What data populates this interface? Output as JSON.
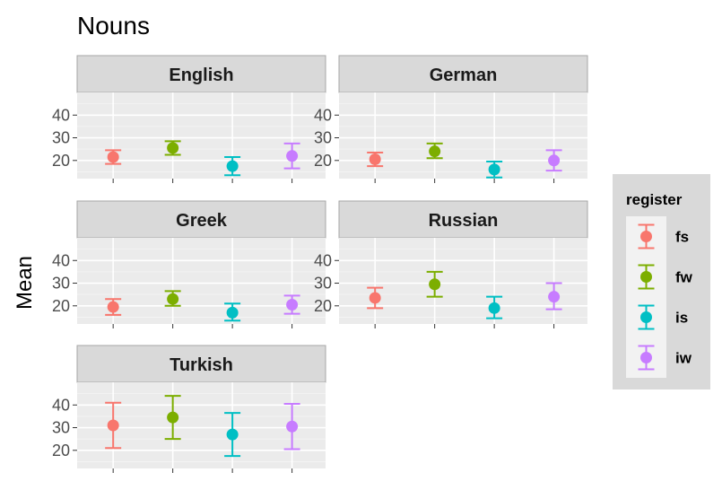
{
  "chart_data": {
    "type": "scatter",
    "title": "Nouns",
    "ylabel": "Mean",
    "xlabel": "",
    "ylim": [
      12,
      50
    ],
    "y_ticks": [
      20,
      30,
      40
    ],
    "categories": [
      "fs",
      "fw",
      "is",
      "iw"
    ],
    "legend": {
      "title": "register",
      "position": "right"
    },
    "grid": true,
    "colors": {
      "fs": "#F8766D",
      "fw": "#7CAE00",
      "is": "#00BFC4",
      "iw": "#C77CFF"
    },
    "panels": [
      {
        "name": "English",
        "points": [
          {
            "register": "fs",
            "mean": 21.5,
            "lower": 18.5,
            "upper": 24.5
          },
          {
            "register": "fw",
            "mean": 25.5,
            "lower": 22.5,
            "upper": 28.5
          },
          {
            "register": "is",
            "mean": 17.5,
            "lower": 13.5,
            "upper": 21.5
          },
          {
            "register": "iw",
            "mean": 22.0,
            "lower": 16.5,
            "upper": 27.5
          }
        ]
      },
      {
        "name": "German",
        "points": [
          {
            "register": "fs",
            "mean": 20.5,
            "lower": 17.5,
            "upper": 23.5
          },
          {
            "register": "fw",
            "mean": 24.0,
            "lower": 21.0,
            "upper": 27.5
          },
          {
            "register": "is",
            "mean": 16.0,
            "lower": 12.5,
            "upper": 19.5
          },
          {
            "register": "iw",
            "mean": 20.0,
            "lower": 15.5,
            "upper": 24.5
          }
        ]
      },
      {
        "name": "Greek",
        "points": [
          {
            "register": "fs",
            "mean": 19.5,
            "lower": 16.0,
            "upper": 23.0
          },
          {
            "register": "fw",
            "mean": 23.0,
            "lower": 20.0,
            "upper": 26.5
          },
          {
            "register": "is",
            "mean": 17.0,
            "lower": 13.5,
            "upper": 21.0
          },
          {
            "register": "iw",
            "mean": 20.5,
            "lower": 16.5,
            "upper": 24.5
          }
        ]
      },
      {
        "name": "Russian",
        "points": [
          {
            "register": "fs",
            "mean": 23.5,
            "lower": 19.0,
            "upper": 28.0
          },
          {
            "register": "fw",
            "mean": 29.5,
            "lower": 24.0,
            "upper": 35.0
          },
          {
            "register": "is",
            "mean": 19.0,
            "lower": 14.5,
            "upper": 24.0
          },
          {
            "register": "iw",
            "mean": 24.0,
            "lower": 18.5,
            "upper": 30.0
          }
        ]
      },
      {
        "name": "Turkish",
        "points": [
          {
            "register": "fs",
            "mean": 31.0,
            "lower": 21.0,
            "upper": 41.0
          },
          {
            "register": "fw",
            "mean": 34.5,
            "lower": 25.0,
            "upper": 44.0
          },
          {
            "register": "is",
            "mean": 27.0,
            "lower": 17.5,
            "upper": 36.5
          },
          {
            "register": "iw",
            "mean": 30.5,
            "lower": 20.5,
            "upper": 40.5
          }
        ]
      }
    ]
  }
}
